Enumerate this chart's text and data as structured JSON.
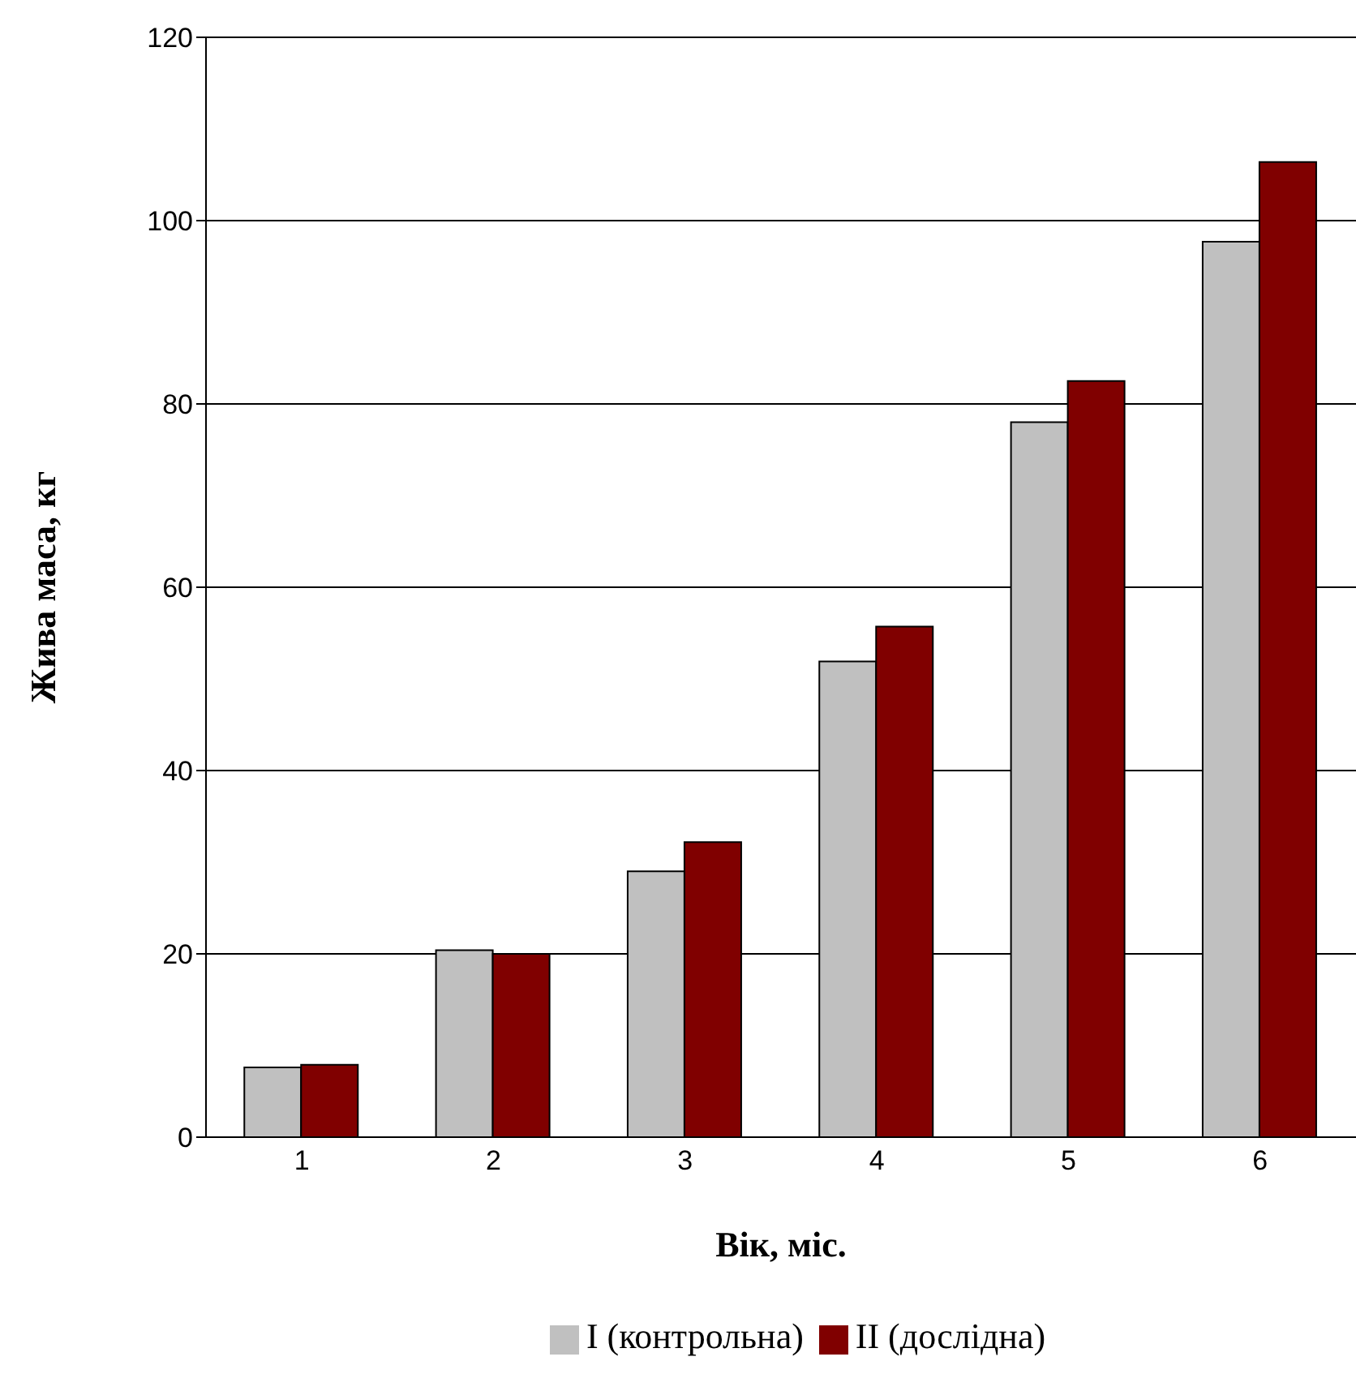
{
  "chart_data": {
    "type": "bar",
    "xlabel": "Вік, міс.",
    "ylabel": "Жива маса, кг",
    "categories": [
      "1",
      "2",
      "3",
      "4",
      "5",
      "6"
    ],
    "series": [
      {
        "name": "I (контрольна)",
        "color": "#c0c0c0",
        "values": [
          7.6,
          20.4,
          29.0,
          51.9,
          78.0,
          97.7
        ]
      },
      {
        "name": "II (дослідна)",
        "color": "#800000",
        "values": [
          7.9,
          20.0,
          32.2,
          55.7,
          82.5,
          106.4
        ]
      }
    ],
    "ylim": [
      0,
      120
    ],
    "yticks": [
      0,
      20,
      40,
      60,
      80,
      100,
      120
    ],
    "grid": "y",
    "legend": "bottom"
  }
}
